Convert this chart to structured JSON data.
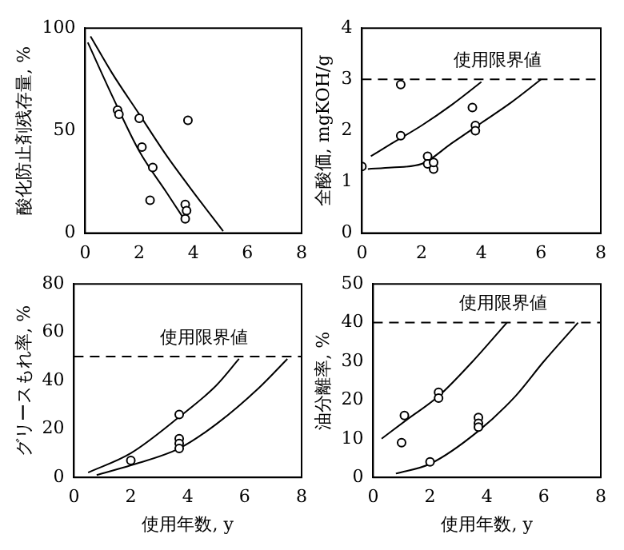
{
  "chart_data": [
    {
      "type": "scatter",
      "ylabel": "酸化防止剤残存量, %",
      "xlim": [
        0,
        8
      ],
      "xticks": [
        0,
        2,
        4,
        6,
        8
      ],
      "ylim": [
        0,
        100
      ],
      "yticks": [
        0,
        50,
        100
      ],
      "grid": false,
      "legend": false,
      "series": [
        {
          "type": "scatter",
          "marker": "circle",
          "color": "#000000",
          "x": [
            1.2,
            1.25,
            2.0,
            2.1,
            2.5,
            2.4,
            3.8,
            3.7,
            3.75,
            3.7
          ],
          "values": [
            60,
            58,
            56,
            42,
            32,
            16,
            55,
            14,
            11,
            7
          ]
        },
        {
          "type": "line",
          "marker": "none",
          "color": "#000000",
          "x": [
            0.2,
            1,
            2,
            3,
            4,
            5.1
          ],
          "values": [
            96,
            78,
            58,
            38,
            20,
            1
          ]
        },
        {
          "type": "line",
          "marker": "none",
          "color": "#000000",
          "x": [
            0.1,
            1,
            2,
            3,
            3.6
          ],
          "values": [
            93,
            67,
            40,
            20,
            8
          ]
        }
      ]
    },
    {
      "type": "scatter",
      "ylabel": "全酸価, mgKOH/g",
      "xlim": [
        0,
        8
      ],
      "xticks": [
        0,
        2,
        4,
        6,
        8
      ],
      "ylim": [
        0,
        4
      ],
      "yticks": [
        0,
        1,
        2,
        3,
        4
      ],
      "grid": false,
      "legend": false,
      "ref_lines": [
        {
          "axis": "y",
          "value": 3,
          "label": "使用限界値",
          "line_style": "dashed"
        }
      ],
      "series": [
        {
          "type": "scatter",
          "marker": "circle",
          "color": "#000000",
          "x": [
            0,
            1.3,
            1.3,
            2.2,
            2.2,
            2.4,
            2.4,
            3.7,
            3.8,
            3.8
          ],
          "values": [
            1.3,
            2.9,
            1.9,
            1.5,
            1.35,
            1.25,
            1.38,
            2.45,
            2.1,
            2.0
          ]
        },
        {
          "type": "line",
          "marker": "none",
          "color": "#000000",
          "x": [
            0.3,
            1,
            2,
            3,
            4
          ],
          "values": [
            1.5,
            1.75,
            2.1,
            2.5,
            2.95
          ]
        },
        {
          "type": "line",
          "marker": "none",
          "color": "#000000",
          "x": [
            0.2,
            1,
            2,
            3,
            4,
            5,
            6
          ],
          "values": [
            1.25,
            1.28,
            1.35,
            1.75,
            2.15,
            2.55,
            3.0
          ]
        }
      ]
    },
    {
      "type": "scatter",
      "xlabel": "使用年数, y",
      "ylabel": "グリースもれ率, %",
      "xlim": [
        0,
        8
      ],
      "xticks": [
        0,
        2,
        4,
        6,
        8
      ],
      "ylim": [
        0,
        80
      ],
      "yticks": [
        0,
        20,
        40,
        60,
        80
      ],
      "grid": false,
      "legend": false,
      "ref_lines": [
        {
          "axis": "y",
          "value": 50,
          "label": "使用限界値",
          "line_style": "dashed"
        }
      ],
      "series": [
        {
          "type": "scatter",
          "marker": "circle",
          "color": "#000000",
          "x": [
            2,
            3.7,
            3.7,
            3.7,
            3.7
          ],
          "values": [
            7,
            26,
            16,
            14,
            12
          ]
        },
        {
          "type": "line",
          "marker": "none",
          "color": "#000000",
          "x": [
            0.5,
            2,
            3.7,
            5,
            5.8
          ],
          "values": [
            2,
            10,
            25,
            38,
            49
          ]
        },
        {
          "type": "line",
          "marker": "none",
          "color": "#000000",
          "x": [
            0.8,
            2,
            3.7,
            5,
            6.5,
            7.5
          ],
          "values": [
            1,
            5,
            12,
            22,
            37,
            49
          ]
        }
      ]
    },
    {
      "type": "scatter",
      "xlabel": "使用年数, y",
      "ylabel": "油分離率, %",
      "xlim": [
        0,
        8
      ],
      "xticks": [
        0,
        2,
        4,
        6,
        8
      ],
      "ylim": [
        0,
        50
      ],
      "yticks": [
        0,
        10,
        20,
        30,
        40,
        50
      ],
      "grid": false,
      "legend": false,
      "ref_lines": [
        {
          "axis": "y",
          "value": 40,
          "label": "使用限界値",
          "line_style": "dashed"
        }
      ],
      "series": [
        {
          "type": "scatter",
          "marker": "circle",
          "color": "#000000",
          "x": [
            1.1,
            1.0,
            2.3,
            2.3,
            2.0,
            3.7,
            3.7,
            3.7
          ],
          "values": [
            16,
            9,
            22,
            20.5,
            4,
            15.5,
            14,
            13
          ]
        },
        {
          "type": "line",
          "marker": "none",
          "color": "#000000",
          "x": [
            0.3,
            1.2,
            2.3,
            3.5,
            4.7
          ],
          "values": [
            10,
            15,
            21,
            30,
            40
          ]
        },
        {
          "type": "line",
          "marker": "none",
          "color": "#000000",
          "x": [
            0.8,
            2,
            3.7,
            5,
            6,
            7.2
          ],
          "values": [
            1,
            3.5,
            12,
            21,
            30,
            40
          ]
        }
      ]
    }
  ]
}
